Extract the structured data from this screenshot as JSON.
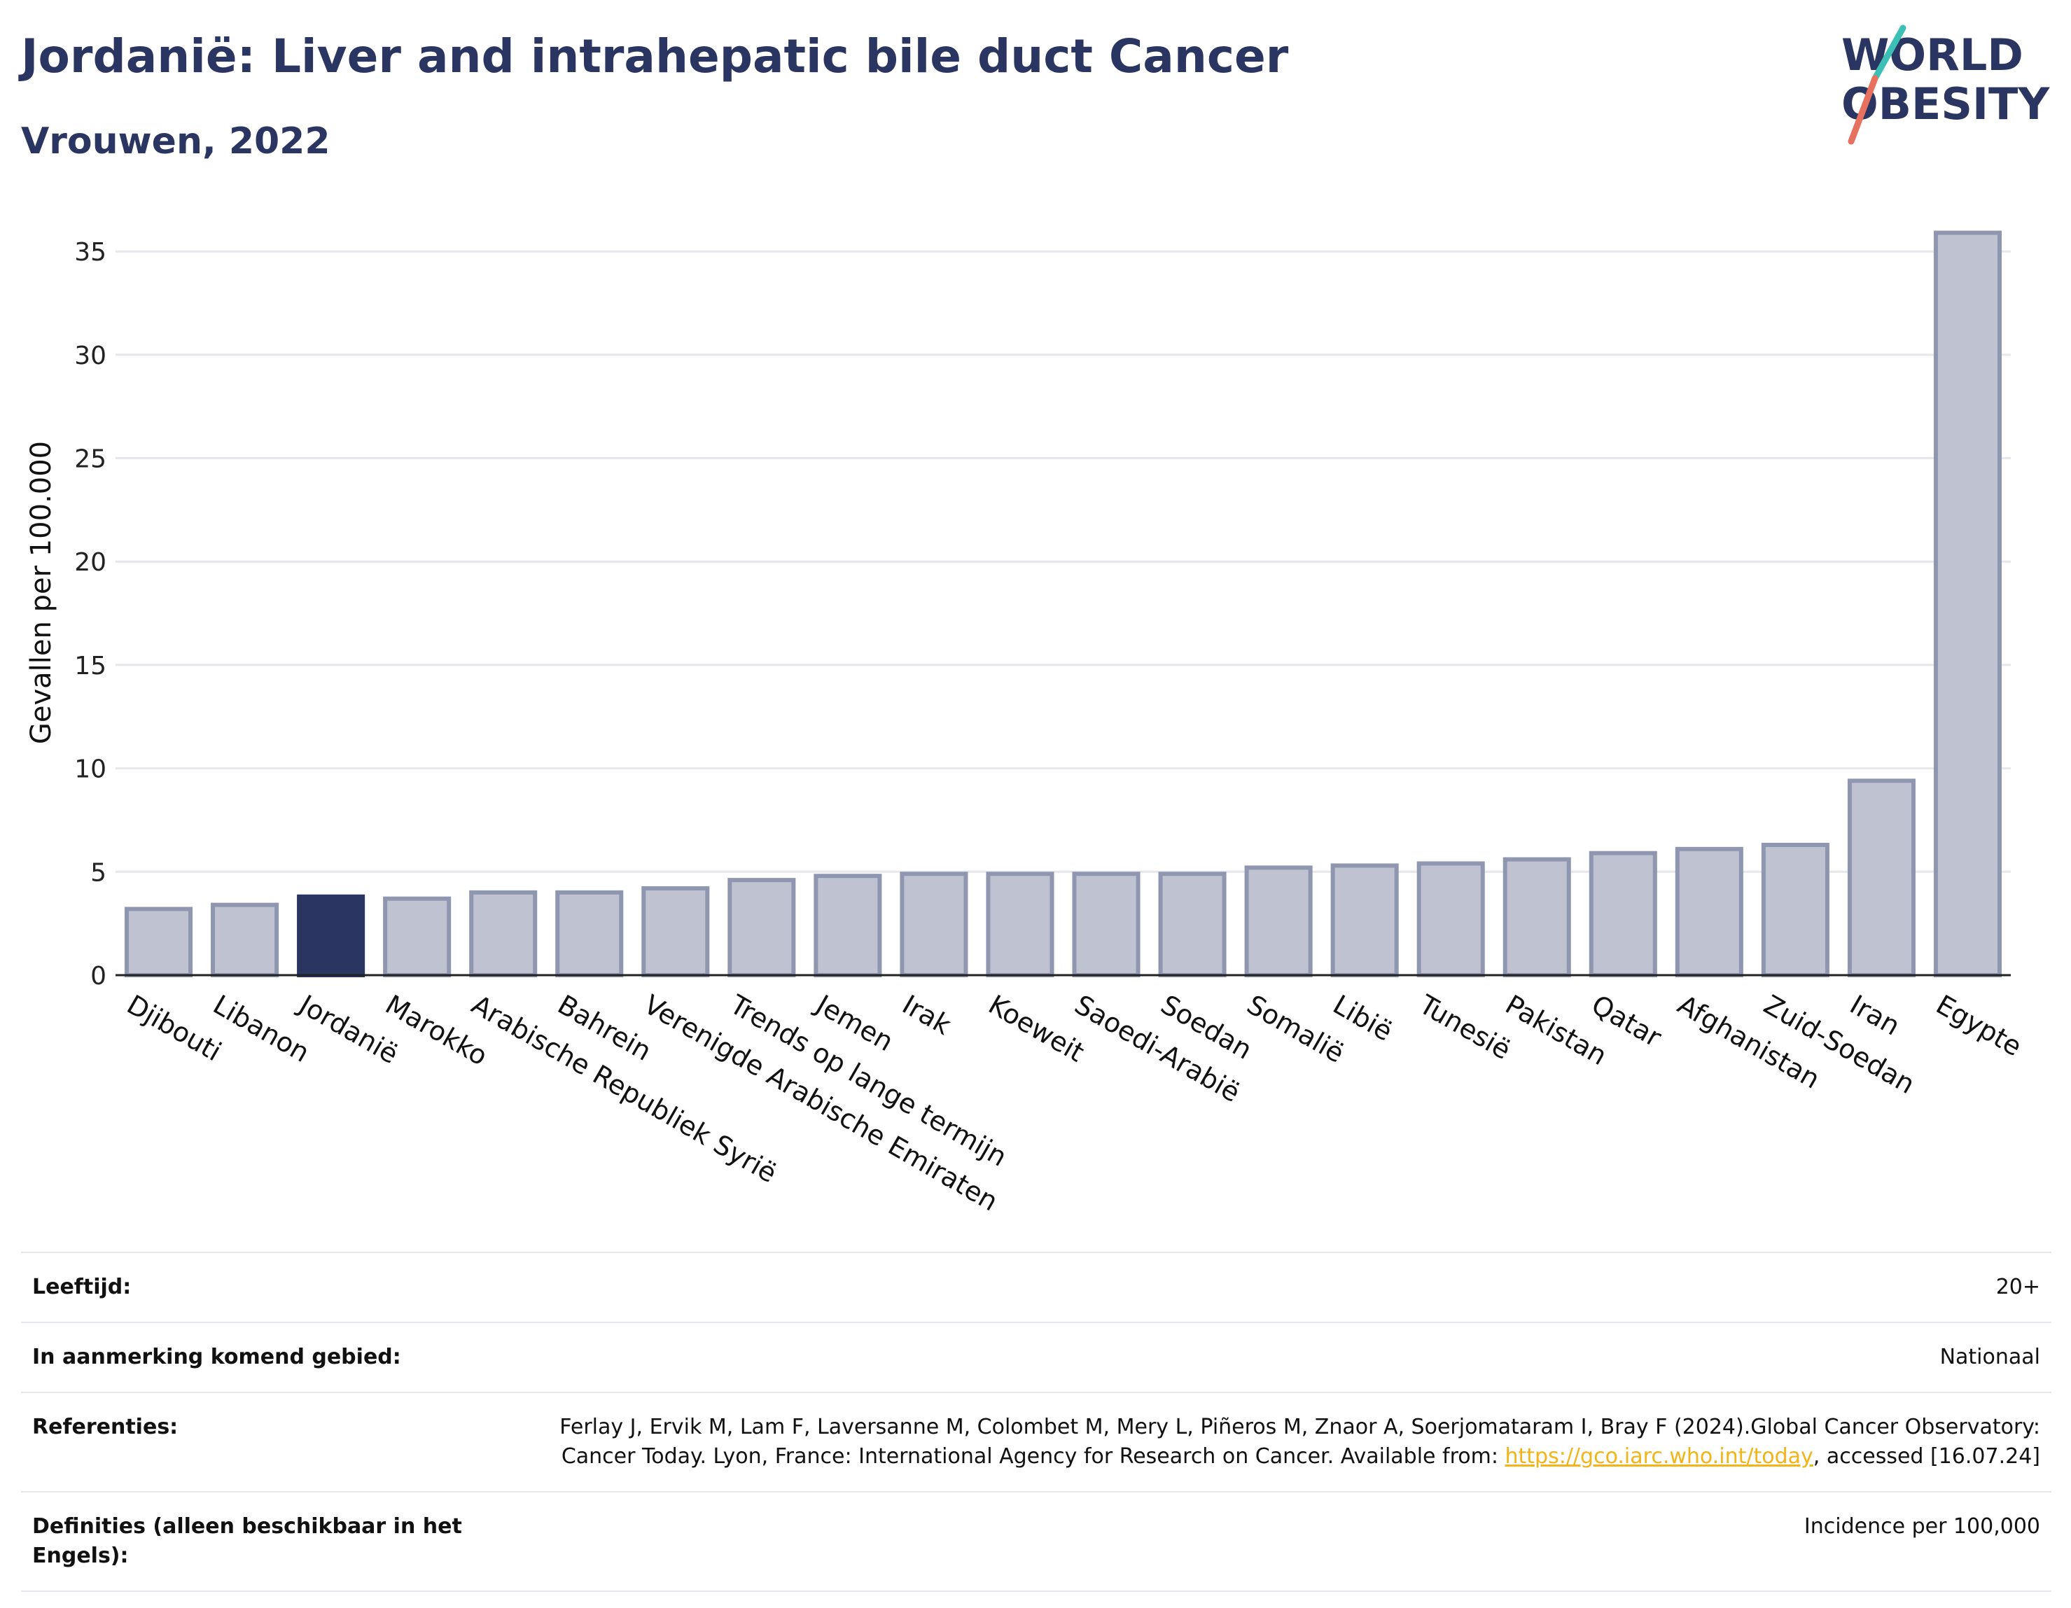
{
  "header": {
    "title": "Jordanië: Liver and intrahepatic bile duct Cancer",
    "subtitle": "Vrouwen, 2022",
    "logo_line1": "WORLD",
    "logo_line2": "OBESITY"
  },
  "chart_data": {
    "type": "bar",
    "title": "Jordanië: Liver and intrahepatic bile duct Cancer",
    "subtitle": "Vrouwen, 2022",
    "ylabel": "Gevallen per 100.000",
    "xlabel": "",
    "ylim": [
      0,
      37
    ],
    "yticks": [
      0,
      5,
      10,
      15,
      20,
      25,
      30,
      35
    ],
    "grid": true,
    "highlight": "Jordanië",
    "colors": {
      "bar": "#bfc3d1",
      "bar_edge": "#8f96b0",
      "highlight": "#2a3561",
      "axis": "#222222",
      "grid": "#e6e6ec"
    },
    "categories": [
      "Djibouti",
      "Libanon",
      "Jordanië",
      "Marokko",
      "Arabische Republiek Syrië",
      "Bahrein",
      "Verenigde Arabische Emiraten",
      "Trends op lange termijn",
      "Jemen",
      "Irak",
      "Koeweit",
      "Saoedi-Arabië",
      "Soedan",
      "Somalië",
      "Libië",
      "Tunesië",
      "Pakistan",
      "Qatar",
      "Afghanistan",
      "Zuid-Soedan",
      "Iran",
      "Egypte"
    ],
    "values": [
      3.2,
      3.4,
      3.8,
      3.7,
      4.0,
      4.0,
      4.2,
      4.6,
      4.8,
      4.9,
      4.9,
      4.9,
      4.9,
      5.2,
      5.3,
      5.4,
      5.6,
      5.9,
      6.1,
      6.3,
      9.4,
      35.9
    ]
  },
  "meta": [
    {
      "label": "Leeftijd:",
      "value": "20+"
    },
    {
      "label": "In aanmerking komend gebied:",
      "value": "Nationaal"
    },
    {
      "label": "Referenties:",
      "value_before": "Ferlay J, Ervik M, Lam F, Laversanne M, Colombet M, Mery L, Piñeros M, Znaor A, Soerjomataram I, Bray F (2024).Global Cancer Observatory: Cancer Today. Lyon, France: International Agency for Research on Cancer. Available from: ",
      "link": "https://gco.iarc.who.int/today",
      "value_after": ", accessed [16.07.24]"
    },
    {
      "label": "Definities (alleen beschikbaar in het Engels):",
      "value": "Incidence per 100,000"
    }
  ]
}
